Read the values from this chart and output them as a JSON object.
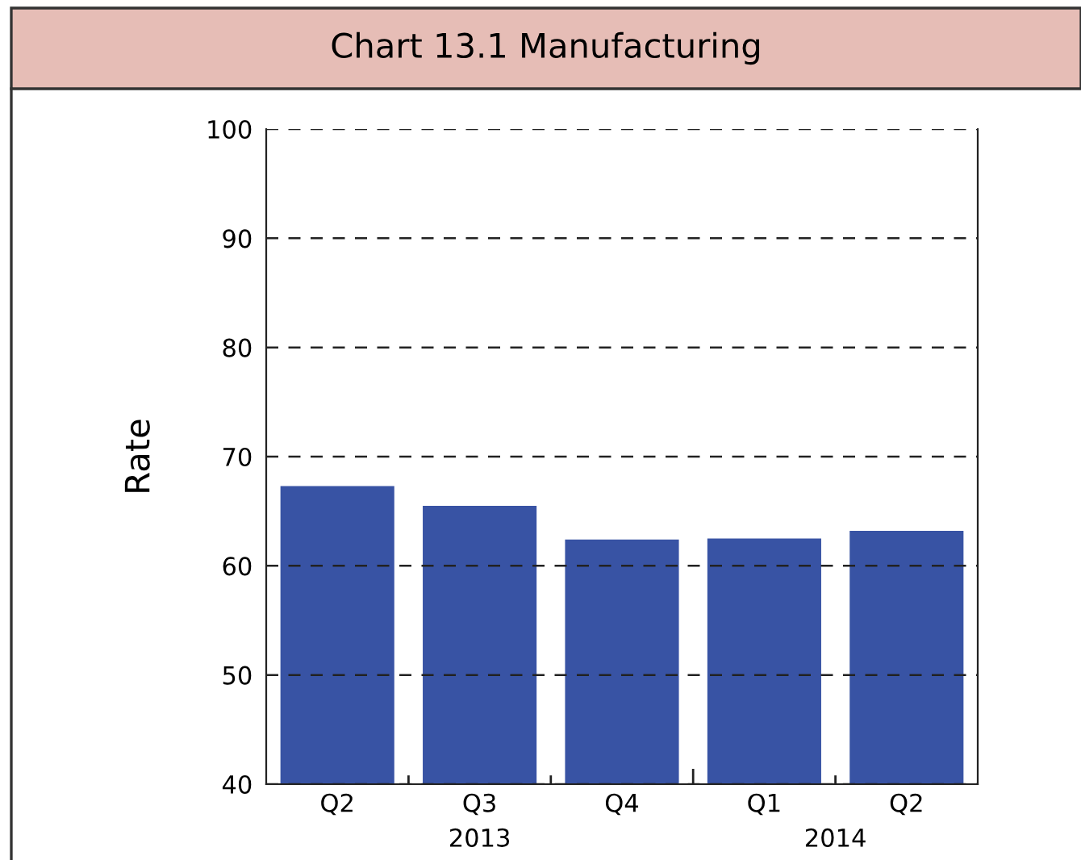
{
  "chart_data": {
    "type": "bar",
    "title": "Chart 13.1 Manufacturing",
    "ylabel": "Rate",
    "categories": [
      "Q2",
      "Q3",
      "Q4",
      "Q1",
      "Q2"
    ],
    "values": [
      67.3,
      65.5,
      62.4,
      62.5,
      63.2
    ],
    "color": "#3853a4",
    "ylim": [
      40,
      100
    ],
    "yticks": [
      40,
      50,
      60,
      70,
      80,
      90,
      100
    ],
    "grid": "y",
    "annotations": [
      "2013",
      "2014"
    ]
  }
}
